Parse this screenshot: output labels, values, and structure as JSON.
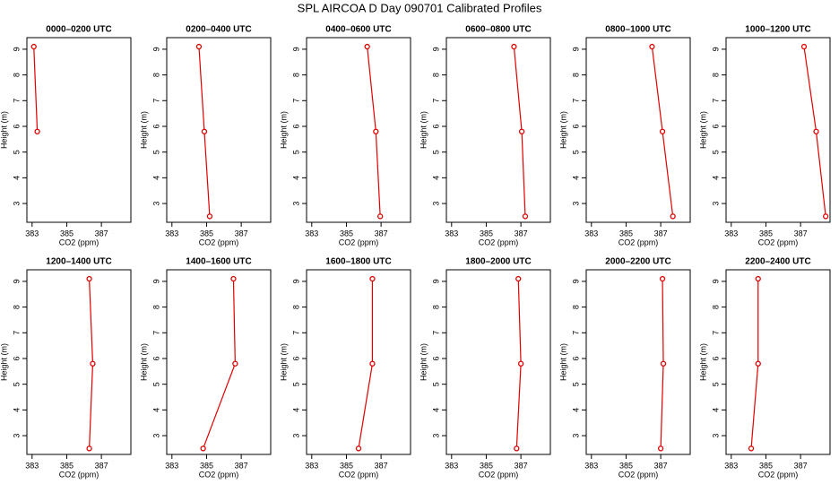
{
  "title": "SPL AIRCOA D  Day 090701  Calibrated Profiles",
  "chart_data": [
    {
      "type": "line",
      "title": "0000–0200 UTC",
      "xlabel": "CO2 (ppm)",
      "ylabel": "Height (m)",
      "x": [
        383.1,
        383.3
      ],
      "values": [
        9.1,
        5.8
      ],
      "color": "#e00000",
      "xlim": [
        382.7,
        388.7
      ],
      "ylim": [
        2.27,
        9.45
      ],
      "xticks": [
        383,
        385,
        387
      ],
      "yticks": [
        3,
        4,
        5,
        6,
        7,
        8,
        9
      ]
    },
    {
      "type": "line",
      "title": "0200–0400 UTC",
      "xlabel": "CO2 (ppm)",
      "ylabel": "Height (m)",
      "x": [
        384.56,
        384.87,
        385.18
      ],
      "values": [
        9.1,
        5.8,
        2.5
      ],
      "color": "#e00000",
      "xlim": [
        382.7,
        388.7
      ],
      "ylim": [
        2.27,
        9.45
      ],
      "xticks": [
        383,
        385,
        387
      ],
      "yticks": [
        3,
        4,
        5,
        6,
        7,
        8,
        9
      ]
    },
    {
      "type": "line",
      "title": "0400–0600 UTC",
      "xlabel": "CO2 (ppm)",
      "ylabel": "Height (m)",
      "x": [
        386.2,
        386.7,
        386.95
      ],
      "values": [
        9.1,
        5.8,
        2.5
      ],
      "color": "#e00000",
      "xlim": [
        382.7,
        388.7
      ],
      "ylim": [
        2.27,
        9.45
      ],
      "xticks": [
        383,
        385,
        387
      ],
      "yticks": [
        3,
        4,
        5,
        6,
        7,
        8,
        9
      ]
    },
    {
      "type": "line",
      "title": "0600–0800 UTC",
      "xlabel": "CO2 (ppm)",
      "ylabel": "Height (m)",
      "x": [
        386.6,
        387.05,
        387.25
      ],
      "values": [
        9.1,
        5.8,
        2.5
      ],
      "color": "#e00000",
      "xlim": [
        382.7,
        388.7
      ],
      "ylim": [
        2.27,
        9.45
      ],
      "xticks": [
        383,
        385,
        387
      ],
      "yticks": [
        3,
        4,
        5,
        6,
        7,
        8,
        9
      ]
    },
    {
      "type": "line",
      "title": "0800–1000 UTC",
      "xlabel": "CO2 (ppm)",
      "ylabel": "Height (m)",
      "x": [
        386.5,
        387.1,
        387.7
      ],
      "values": [
        9.1,
        5.8,
        2.5
      ],
      "color": "#e00000",
      "xlim": [
        382.7,
        388.7
      ],
      "ylim": [
        2.27,
        9.45
      ],
      "xticks": [
        383,
        385,
        387
      ],
      "yticks": [
        3,
        4,
        5,
        6,
        7,
        8,
        9
      ]
    },
    {
      "type": "line",
      "title": "1000–1200 UTC",
      "xlabel": "CO2 (ppm)",
      "ylabel": "Height (m)",
      "x": [
        387.2,
        387.9,
        388.45
      ],
      "values": [
        9.1,
        5.8,
        2.5
      ],
      "color": "#e00000",
      "xlim": [
        382.7,
        388.7
      ],
      "ylim": [
        2.27,
        9.45
      ],
      "xticks": [
        383,
        385,
        387
      ],
      "yticks": [
        3,
        4,
        5,
        6,
        7,
        8,
        9
      ]
    },
    {
      "type": "line",
      "title": "1200–1400 UTC",
      "xlabel": "CO2 (ppm)",
      "ylabel": "Height (m)",
      "x": [
        386.3,
        386.5,
        386.3
      ],
      "values": [
        9.1,
        5.8,
        2.5
      ],
      "color": "#e00000",
      "xlim": [
        382.7,
        388.7
      ],
      "ylim": [
        2.27,
        9.45
      ],
      "xticks": [
        383,
        385,
        387
      ],
      "yticks": [
        3,
        4,
        5,
        6,
        7,
        8,
        9
      ]
    },
    {
      "type": "line",
      "title": "1400–1600 UTC",
      "xlabel": "CO2 (ppm)",
      "ylabel": "Height (m)",
      "x": [
        386.55,
        386.65,
        384.8
      ],
      "values": [
        9.1,
        5.8,
        2.5
      ],
      "color": "#e00000",
      "xlim": [
        382.7,
        388.7
      ],
      "ylim": [
        2.27,
        9.45
      ],
      "xticks": [
        383,
        385,
        387
      ],
      "yticks": [
        3,
        4,
        5,
        6,
        7,
        8,
        9
      ]
    },
    {
      "type": "line",
      "title": "1600–1800 UTC",
      "xlabel": "CO2 (ppm)",
      "ylabel": "Height (m)",
      "x": [
        386.5,
        386.5,
        385.7
      ],
      "values": [
        9.1,
        5.8,
        2.5
      ],
      "color": "#e00000",
      "xlim": [
        382.7,
        388.7
      ],
      "ylim": [
        2.27,
        9.45
      ],
      "xticks": [
        383,
        385,
        387
      ],
      "yticks": [
        3,
        4,
        5,
        6,
        7,
        8,
        9
      ]
    },
    {
      "type": "line",
      "title": "1800–2000 UTC",
      "xlabel": "CO2 (ppm)",
      "ylabel": "Height (m)",
      "x": [
        386.85,
        387.0,
        386.75
      ],
      "values": [
        9.1,
        5.8,
        2.5
      ],
      "color": "#e00000",
      "xlim": [
        382.7,
        388.7
      ],
      "ylim": [
        2.27,
        9.45
      ],
      "xticks": [
        383,
        385,
        387
      ],
      "yticks": [
        3,
        4,
        5,
        6,
        7,
        8,
        9
      ]
    },
    {
      "type": "line",
      "title": "2000–2200 UTC",
      "xlabel": "CO2 (ppm)",
      "ylabel": "Height (m)",
      "x": [
        387.1,
        387.15,
        387.0
      ],
      "values": [
        9.1,
        5.8,
        2.5
      ],
      "color": "#e00000",
      "xlim": [
        382.7,
        388.7
      ],
      "ylim": [
        2.27,
        9.45
      ],
      "xticks": [
        383,
        385,
        387
      ],
      "yticks": [
        3,
        4,
        5,
        6,
        7,
        8,
        9
      ]
    },
    {
      "type": "line",
      "title": "2200–2400 UTC",
      "xlabel": "CO2 (ppm)",
      "ylabel": "Height (m)",
      "x": [
        384.55,
        384.55,
        384.15
      ],
      "values": [
        9.1,
        5.8,
        2.5
      ],
      "color": "#e00000",
      "xlim": [
        382.7,
        388.7
      ],
      "ylim": [
        2.27,
        9.45
      ],
      "xticks": [
        383,
        385,
        387
      ],
      "yticks": [
        3,
        4,
        5,
        6,
        7,
        8,
        9
      ]
    }
  ]
}
